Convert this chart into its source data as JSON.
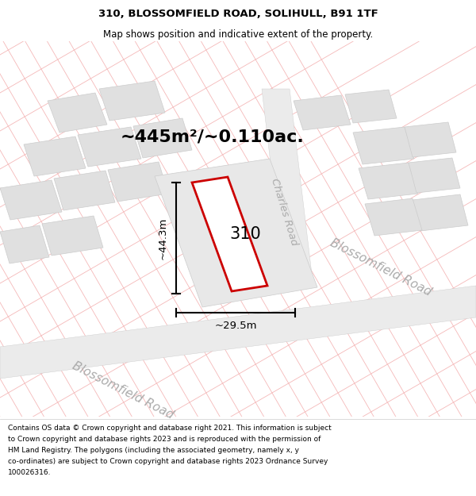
{
  "title_line1": "310, BLOSSOMFIELD ROAD, SOLIHULL, B91 1TF",
  "title_line2": "Map shows position and indicative extent of the property.",
  "area_text": "~445m²/~0.110ac.",
  "label_310": "310",
  "dim_height": "~44.3m",
  "dim_width": "~29.5m",
  "road_label_lower": "Blossomfield Road",
  "road_label_upper": "Blossomfield Road",
  "road_label_charles": "Charles Road",
  "footer_text": "Contains OS data © Crown copyright and database right 2021. This information is subject to Crown copyright and database rights 2023 and is reproduced with the permission of HM Land Registry. The polygons (including the associated geometry, namely x, y co-ordinates) are subject to Crown copyright and database rights 2023 Ordnance Survey 100026316.",
  "map_bg": "#ffffff",
  "plot_outline_color": "#cc0000",
  "pink_line_color": "#f5b8b8",
  "gray_block_fill": "#e0e0e0",
  "gray_block_edge": "#cccccc",
  "road_fill": "#ebebeb",
  "title_bg": "#ffffff",
  "footer_bg": "#ffffff"
}
